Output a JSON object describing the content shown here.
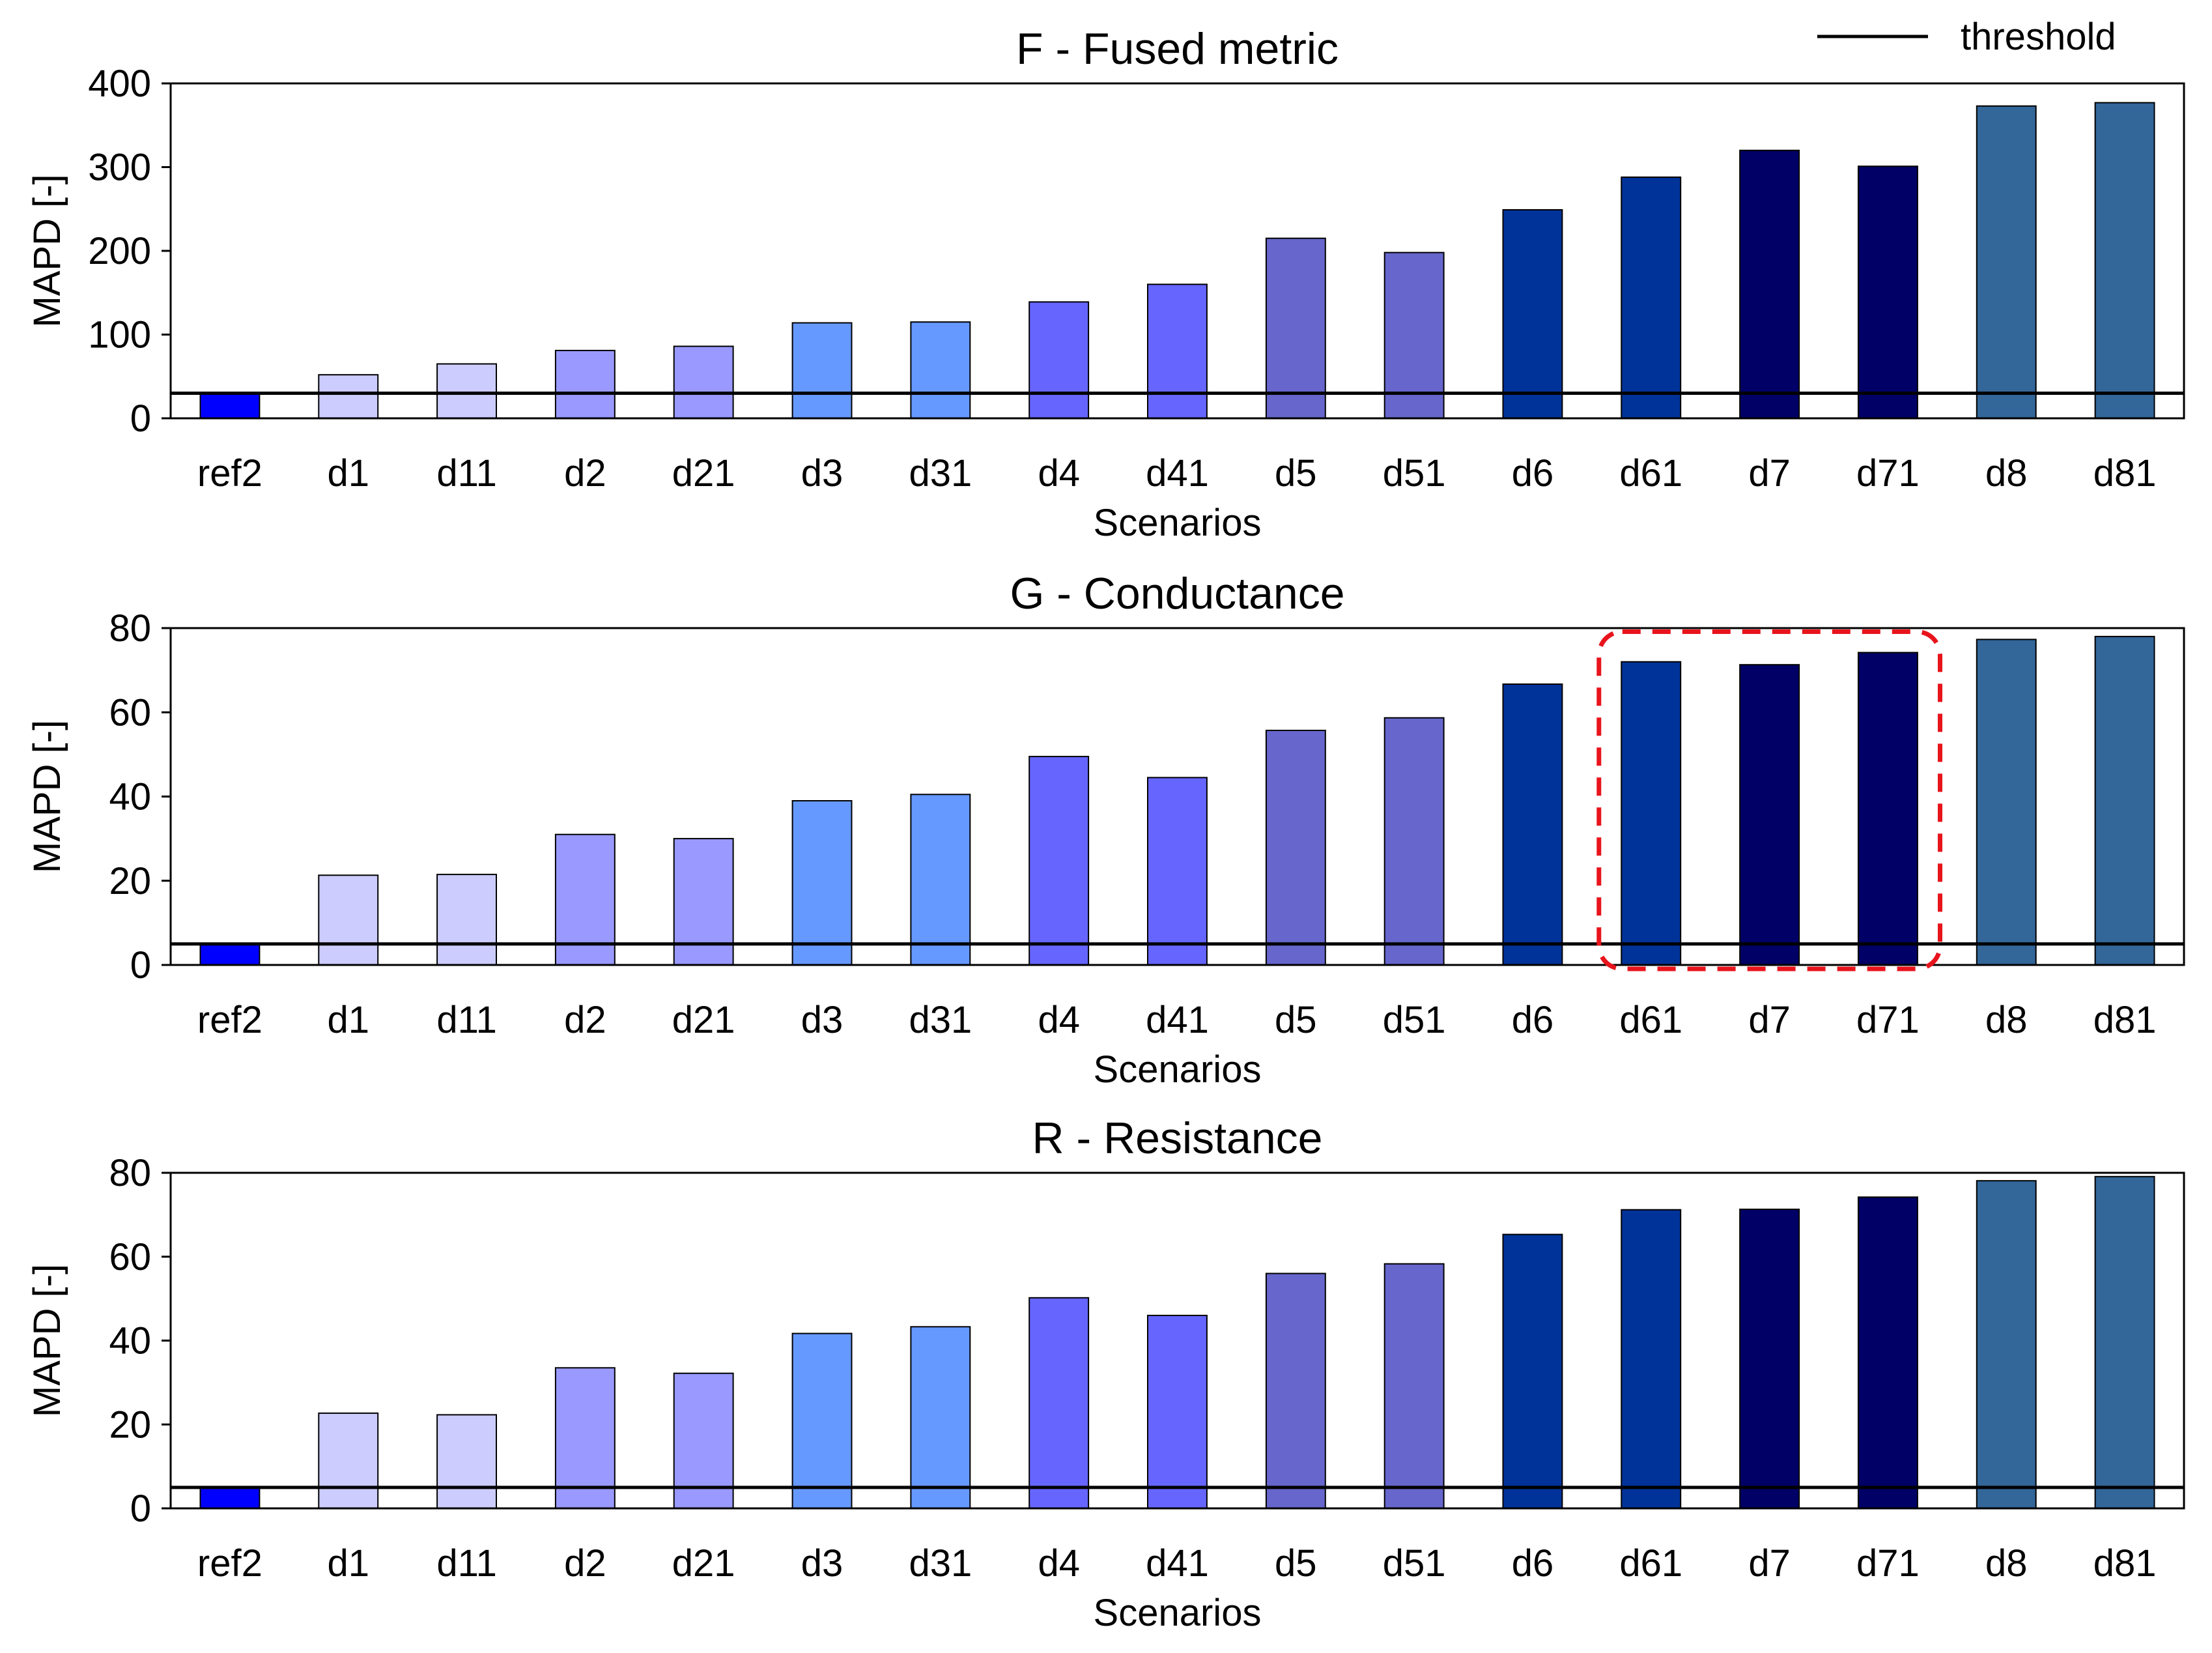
{
  "legend": {
    "entries": [
      {
        "label": "threshold",
        "style": "line",
        "color": "#000000"
      }
    ]
  },
  "annotation": {
    "type": "dashed-rounded-box",
    "color": "#e8141c",
    "panel": "G - Conductance",
    "categories": [
      "d61",
      "d7",
      "d71"
    ]
  },
  "chart_data": [
    {
      "type": "bar",
      "title": "F - Fused metric",
      "xlabel": "Scenarios",
      "ylabel": "MAPD [-]",
      "ylim": [
        0,
        400
      ],
      "yticks": [
        0,
        100,
        200,
        300,
        400
      ],
      "threshold": 30,
      "categories": [
        "ref2",
        "d1",
        "d11",
        "d2",
        "d21",
        "d3",
        "d31",
        "d4",
        "d41",
        "d5",
        "d51",
        "d6",
        "d61",
        "d7",
        "d71",
        "d8",
        "d81"
      ],
      "values": [
        30,
        52,
        65,
        81,
        86,
        114,
        115,
        139,
        160,
        215,
        198,
        249,
        288,
        320,
        301,
        373,
        377
      ],
      "colors": [
        "#0000ff",
        "#ccccff",
        "#ccccff",
        "#9999ff",
        "#9999ff",
        "#6699ff",
        "#6699ff",
        "#6666ff",
        "#6666ff",
        "#6666cc",
        "#6666cc",
        "#003399",
        "#003399",
        "#000066",
        "#000066",
        "#336699",
        "#336699"
      ]
    },
    {
      "type": "bar",
      "title": "G - Conductance",
      "xlabel": "Scenarios",
      "ylabel": "MAPD [-]",
      "ylim": [
        0,
        80
      ],
      "yticks": [
        0,
        20,
        40,
        60,
        80
      ],
      "threshold": 5,
      "categories": [
        "ref2",
        "d1",
        "d11",
        "d2",
        "d21",
        "d3",
        "d31",
        "d4",
        "d41",
        "d5",
        "d51",
        "d6",
        "d61",
        "d7",
        "d71",
        "d8",
        "d81"
      ],
      "values": [
        5,
        21.3,
        21.5,
        31,
        30,
        39,
        40.5,
        49.5,
        44.5,
        55.7,
        58.7,
        66.7,
        72,
        71.3,
        74.2,
        77.3,
        78
      ],
      "colors": [
        "#0000ff",
        "#ccccff",
        "#ccccff",
        "#9999ff",
        "#9999ff",
        "#6699ff",
        "#6699ff",
        "#6666ff",
        "#6666ff",
        "#6666cc",
        "#6666cc",
        "#003399",
        "#003399",
        "#000066",
        "#000066",
        "#336699",
        "#336699"
      ]
    },
    {
      "type": "bar",
      "title": "R - Resistance",
      "xlabel": "Scenarios",
      "ylabel": "MAPD [-]",
      "ylim": [
        0,
        80
      ],
      "yticks": [
        0,
        20,
        40,
        60,
        80
      ],
      "threshold": 5,
      "categories": [
        "ref2",
        "d1",
        "d11",
        "d2",
        "d21",
        "d3",
        "d31",
        "d4",
        "d41",
        "d5",
        "d51",
        "d6",
        "d61",
        "d7",
        "d71",
        "d8",
        "d81"
      ],
      "values": [
        5,
        22.7,
        22.3,
        33.5,
        32.2,
        41.7,
        43.3,
        50.2,
        46,
        56,
        58.3,
        65.3,
        71.2,
        71.3,
        74.2,
        78.1,
        79.1
      ],
      "colors": [
        "#0000ff",
        "#ccccff",
        "#ccccff",
        "#9999ff",
        "#9999ff",
        "#6699ff",
        "#6699ff",
        "#6666ff",
        "#6666ff",
        "#6666cc",
        "#6666cc",
        "#003399",
        "#003399",
        "#000066",
        "#000066",
        "#336699",
        "#336699"
      ]
    }
  ]
}
